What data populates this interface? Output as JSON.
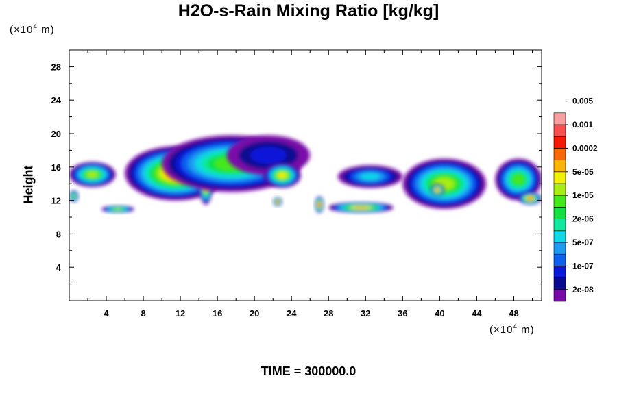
{
  "chart_data": {
    "type": "heatmap",
    "title": "H2O-s-Rain Mixing Ratio [kg/kg]",
    "ylabel": "Height",
    "y_unit": {
      "prefix": "(×10",
      "exp": "4",
      "suffix": " m)"
    },
    "x_unit": {
      "prefix": "(×10",
      "exp": "4",
      "suffix": " m)"
    },
    "xlim": [
      0,
      51
    ],
    "ylim": [
      0,
      30
    ],
    "x_ticks": [
      4,
      8,
      12,
      16,
      20,
      24,
      28,
      32,
      36,
      40,
      44,
      48
    ],
    "y_ticks": [
      4,
      8,
      12,
      16,
      20,
      24,
      28
    ],
    "colorbar": {
      "colors": [
        "#7a0aa8",
        "#0a0a90",
        "#0a18d8",
        "#1060f0",
        "#1c9cf0",
        "#10d8e8",
        "#10e8a0",
        "#10e040",
        "#44e81c",
        "#a8ec14",
        "#f0f008",
        "#f8b408",
        "#f86808",
        "#f81808",
        "#f85050",
        "#f8a0a0"
      ],
      "labels": [
        "2e-08",
        "1e-07",
        "5e-07",
        "2e-06",
        "1e-05",
        "5e-05",
        "0.0002",
        "0.001",
        "0.005"
      ]
    },
    "fields": [
      {
        "x": [
          0,
          5
        ],
        "y": [
          13.6,
          16.6
        ],
        "level": 9
      },
      {
        "x": [
          6,
          17
        ],
        "y": [
          12.0,
          18.5
        ],
        "level": 11
      },
      {
        "x": [
          14,
          15.5
        ],
        "y": [
          11.5,
          16.5
        ],
        "level": 13
      },
      {
        "x": [
          10,
          25
        ],
        "y": [
          13.0,
          19.8
        ],
        "level": 8
      },
      {
        "x": [
          17,
          26
        ],
        "y": [
          15.0,
          19.8
        ],
        "level": 2
      },
      {
        "x": [
          21,
          25
        ],
        "y": [
          13.5,
          16.5
        ],
        "level": 10
      },
      {
        "x": [
          22,
          23
        ],
        "y": [
          11.3,
          12.4
        ],
        "level": 13
      },
      {
        "x": [
          26.5,
          27.5
        ],
        "y": [
          10.5,
          12.5
        ],
        "level": 13
      },
      {
        "x": [
          28,
          35
        ],
        "y": [
          10.5,
          11.8
        ],
        "level": 11
      },
      {
        "x": [
          3.5,
          7
        ],
        "y": [
          10.5,
          11.4
        ],
        "level": 9
      },
      {
        "x": [
          29,
          36
        ],
        "y": [
          13.5,
          16.2
        ],
        "level": 5
      },
      {
        "x": [
          36,
          45
        ],
        "y": [
          11.0,
          17.0
        ],
        "level": 9
      },
      {
        "x": [
          39,
          40.5
        ],
        "y": [
          12.5,
          14.0
        ],
        "level": 12
      },
      {
        "x": [
          46,
          51
        ],
        "y": [
          12.0,
          17.0
        ],
        "level": 8
      },
      {
        "x": [
          48.5,
          51
        ],
        "y": [
          11.5,
          13.0
        ],
        "level": 12
      },
      {
        "x": [
          0,
          1
        ],
        "y": [
          11.8,
          13.2
        ],
        "level": 9
      }
    ]
  },
  "time_label": "TIME = 300000.0"
}
